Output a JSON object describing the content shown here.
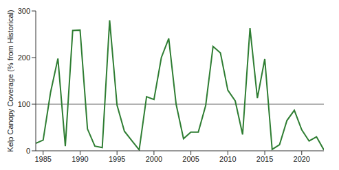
{
  "chart_data": {
    "type": "line",
    "y_label": "Kelp Canopy Coverage (% from Historical)",
    "x": [
      1984,
      1985,
      1986,
      1987,
      1988,
      1989,
      1990,
      1991,
      1992,
      1993,
      1994,
      1995,
      1996,
      1997,
      1998,
      1999,
      2000,
      2001,
      2002,
      2003,
      2004,
      2005,
      2006,
      2007,
      2008,
      2009,
      2010,
      2011,
      2012,
      2013,
      2014,
      2015,
      2016,
      2017,
      2018,
      2019,
      2020,
      2021,
      2022,
      2023
    ],
    "values": [
      16,
      23,
      125,
      198,
      10,
      258,
      259,
      47,
      10,
      7,
      280,
      98,
      42,
      22,
      2,
      116,
      110,
      200,
      241,
      100,
      26,
      40,
      40,
      97,
      224,
      210,
      130,
      107,
      35,
      263,
      113,
      197,
      3,
      13,
      65,
      87,
      45,
      21,
      30,
      2
    ],
    "color": "#2e7d32",
    "xlim": [
      1984,
      2023
    ],
    "xticks": [
      1985,
      1990,
      1995,
      2000,
      2005,
      2010,
      2015,
      2020
    ],
    "ylim": [
      0,
      300
    ],
    "yticks": [
      0,
      100,
      200,
      300
    ],
    "grid": false,
    "reference_line": 100
  }
}
